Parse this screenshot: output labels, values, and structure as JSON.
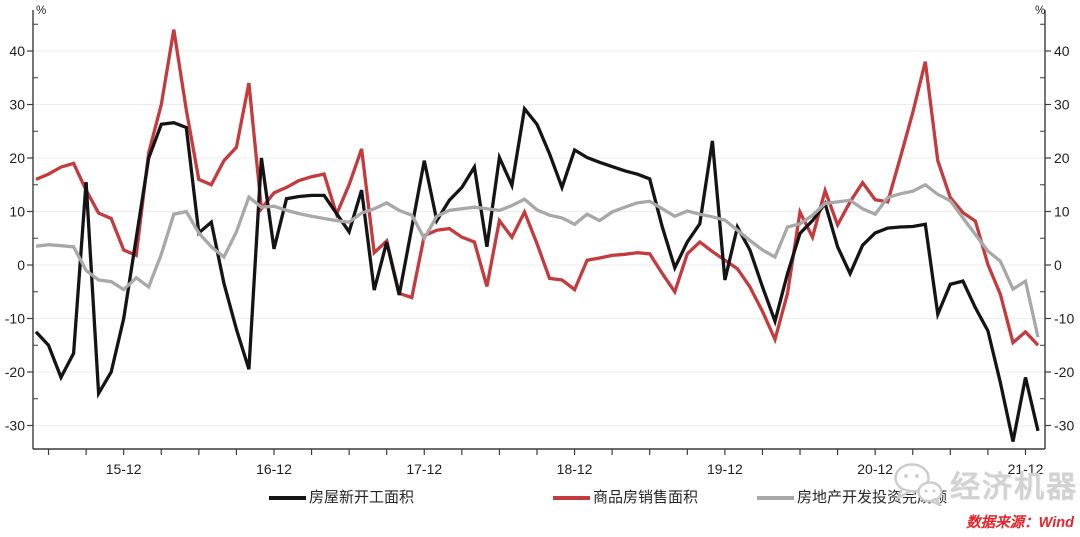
{
  "watermark": {
    "brand": "经济机器",
    "icon": "wechat-chat-bubbles-icon"
  },
  "source_note": "数据来源：Wind",
  "chart_data": {
    "type": "line",
    "title": "",
    "y_unit": "%",
    "grid": "horizontal-light",
    "legend_position": "bottom-center",
    "ylim": [
      -34.5,
      47.5
    ],
    "y_ticks": [
      40,
      30,
      20,
      10,
      0,
      -10,
      -20,
      -30
    ],
    "x_tick_labels": [
      "15-12",
      "16-12",
      "17-12",
      "18-12",
      "19-12",
      "20-12",
      "21-12"
    ],
    "x": [
      "15-05",
      "15-06",
      "15-07",
      "15-08",
      "15-09",
      "15-10",
      "15-11",
      "15-12",
      "16-01",
      "16-02",
      "16-03",
      "16-04",
      "16-05",
      "16-06",
      "16-07",
      "16-08",
      "16-09",
      "16-10",
      "16-11",
      "16-12",
      "17-01",
      "17-02",
      "17-03",
      "17-04",
      "17-05",
      "17-06",
      "17-07",
      "17-08",
      "17-09",
      "17-10",
      "17-11",
      "17-12",
      "18-01",
      "18-02",
      "18-03",
      "18-04",
      "18-05",
      "18-06",
      "18-07",
      "18-08",
      "18-09",
      "18-10",
      "18-11",
      "18-12",
      "19-01",
      "19-02",
      "19-03",
      "19-04",
      "19-05",
      "19-06",
      "19-07",
      "19-08",
      "19-09",
      "19-10",
      "19-11",
      "19-12",
      "20-01",
      "20-02",
      "20-03",
      "20-04",
      "20-05",
      "20-06",
      "20-07",
      "20-08",
      "20-09",
      "20-10",
      "20-11",
      "20-12",
      "21-01",
      "21-02",
      "21-03",
      "21-04",
      "21-05",
      "21-06",
      "21-07",
      "21-08",
      "21-09",
      "21-10",
      "21-11",
      "21-12",
      "22-01"
    ],
    "series": [
      {
        "name": "房屋新开工面积",
        "color": "#141414",
        "values": [
          -12.5,
          -15,
          -21,
          -16.5,
          15.5,
          -24,
          -20,
          -10,
          5,
          20,
          26.3,
          26.6,
          25.7,
          6,
          8,
          -3.4,
          -12,
          -19.5,
          20,
          3,
          12.4,
          12.8,
          13,
          13,
          9.6,
          6.2,
          14,
          -4.7,
          4.3,
          -5.6,
          7,
          19.5,
          8.3,
          12.1,
          14.5,
          18.3,
          3.4,
          20.1,
          14.9,
          29.2,
          26.3,
          20.8,
          14.5,
          21.5,
          20.1,
          19.2,
          18.4,
          17.6,
          17,
          16.1,
          7.1,
          -0.5,
          4.3,
          7.7,
          23.2,
          -2.8,
          7.1,
          2.8,
          -4.1,
          -10.5,
          -1.6,
          5.9,
          8.3,
          11.5,
          3.4,
          -1.6,
          3.7,
          6,
          6.9,
          7.1,
          7.2,
          7.6,
          -9.2,
          -3.6,
          -3,
          -8,
          -12.3,
          -22,
          -33,
          -21,
          -31
        ]
      },
      {
        "name": "商品房销售面积",
        "color": "#c53a3c",
        "values": [
          16,
          17,
          18.3,
          19,
          14,
          9.7,
          8.7,
          2.8,
          1.8,
          21,
          30,
          44,
          29,
          16,
          15,
          19.5,
          22,
          34,
          10.5,
          13.5,
          14.5,
          15.8,
          16.5,
          17,
          9.5,
          15,
          21.7,
          2.3,
          4.5,
          -5.3,
          -6.1,
          5.5,
          6.5,
          6.8,
          5.2,
          4.3,
          -4,
          8.3,
          5.2,
          9.9,
          4,
          -2.5,
          -2.8,
          -4.6,
          0.9,
          1.3,
          1.8,
          2,
          2.3,
          2.1,
          -1.6,
          -5,
          2.1,
          4.3,
          2.5,
          0.9,
          -0.7,
          -4.1,
          -8.7,
          -13.9,
          -5.3,
          9.9,
          5.2,
          13.9,
          7.5,
          11.8,
          15.4,
          12.2,
          11.8,
          20,
          28.5,
          38,
          19.5,
          12.6,
          9.8,
          8.2,
          0.1,
          -5.5,
          -14.5,
          -12.5,
          -15
        ]
      },
      {
        "name": "房地产开发投资完成额",
        "color": "#a8a8a8",
        "values": [
          3.5,
          3.8,
          3.6,
          3.4,
          -1,
          -2.8,
          -3.1,
          -4.6,
          -2.4,
          -4.1,
          2,
          9.5,
          10,
          6,
          3.4,
          1.5,
          6.2,
          12.7,
          10.8,
          11,
          10.2,
          9.6,
          9.1,
          8.7,
          8.3,
          8,
          9.7,
          10.5,
          11.6,
          10.2,
          9.3,
          5,
          9.1,
          10.2,
          10.5,
          10.8,
          10.5,
          10.2,
          11.1,
          12.3,
          10.3,
          9.3,
          8.8,
          7.6,
          9.5,
          8.3,
          9.9,
          10.8,
          11.6,
          11.9,
          10.5,
          9.1,
          10.1,
          9.5,
          9,
          8.4,
          6.5,
          4.6,
          2.8,
          1.5,
          7.1,
          7.7,
          9.3,
          11.5,
          11.8,
          12.1,
          10.5,
          9.5,
          12.6,
          13.3,
          13.8,
          15,
          13.2,
          12,
          8.8,
          5.7,
          2.6,
          0.7,
          -4.5,
          -3,
          -13.5
        ]
      }
    ]
  }
}
